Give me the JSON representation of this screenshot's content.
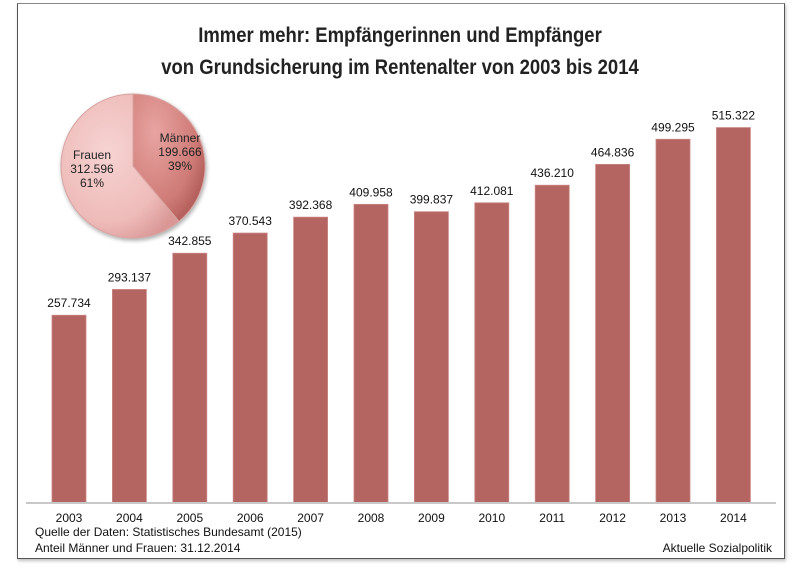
{
  "chart_data": [
    {
      "type": "bar",
      "title": "Immer mehr: Empfängerinnen und Empfänger",
      "subtitle": "von Grundsicherung im Rentenalter von 2003 bis 2014",
      "categories": [
        "2003",
        "2004",
        "2005",
        "2006",
        "2007",
        "2008",
        "2009",
        "2010",
        "2011",
        "2012",
        "2013",
        "2014"
      ],
      "values": [
        257734,
        293137,
        342855,
        370543,
        392368,
        409958,
        399837,
        412081,
        436210,
        464836,
        499295,
        515322
      ],
      "data_labels": [
        "257.734",
        "293.137",
        "342.855",
        "370.543",
        "392.368",
        "409.958",
        "399.837",
        "412.081",
        "436.210",
        "464.836",
        "499.295",
        "515.322"
      ],
      "xlabel": "",
      "ylabel": "",
      "ylim": [
        0,
        600000
      ],
      "grid": false,
      "legend": "none",
      "bar_color": "#b56561"
    },
    {
      "type": "pie",
      "labels": [
        "Männer",
        "Frauen"
      ],
      "values": [
        199666,
        312596
      ],
      "value_labels": [
        "199.666",
        "312.596"
      ],
      "percent_labels": [
        "39%",
        "61%"
      ],
      "colors": [
        "#c9726f",
        "#f0c4c3"
      ]
    }
  ],
  "footer": {
    "source": "Quelle der Daten: Statistisches Bundesamt (2015)",
    "note": "Anteil Männer und Frauen: 31.12.2014",
    "publisher": "Aktuelle Sozialpolitik"
  }
}
